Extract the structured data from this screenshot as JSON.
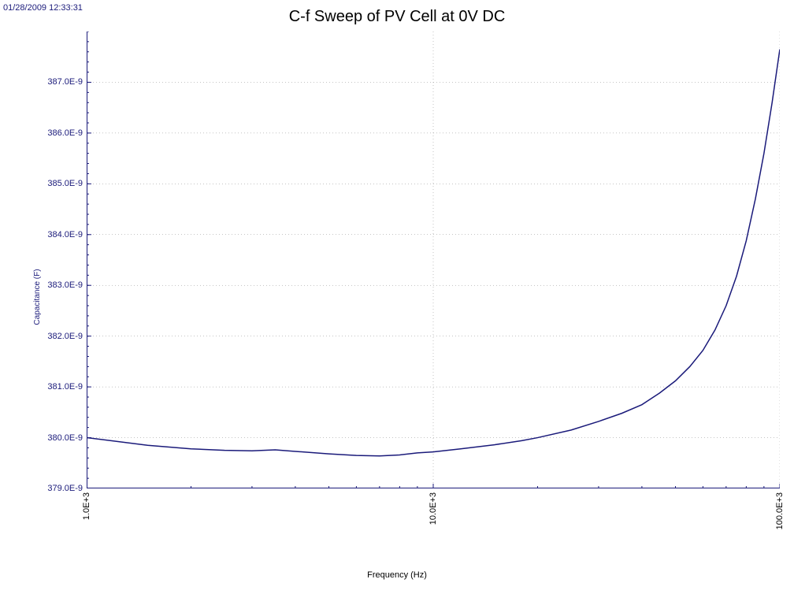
{
  "timestamp": "01/28/2009 12:33:31",
  "title": "C-f Sweep of PV Cell at 0V DC",
  "ylabel": "Capacitance (F)",
  "xlabel": "Frequency (Hz)",
  "chart": {
    "type": "line",
    "xscale": "log",
    "xlim": [
      1000,
      100000
    ],
    "ylim": [
      3.79e-07,
      3.88e-07
    ],
    "xticks": [
      1000,
      10000,
      100000
    ],
    "xtick_labels": [
      "1.0E+3",
      "10.0E+3",
      "100.0E+3"
    ],
    "yticks": [
      3.79e-07,
      3.8e-07,
      3.81e-07,
      3.82e-07,
      3.83e-07,
      3.84e-07,
      3.85e-07,
      3.86e-07,
      3.87e-07
    ],
    "ytick_labels": [
      "379.0E-9",
      "380.0E-9",
      "381.0E-9",
      "382.0E-9",
      "383.0E-9",
      "384.0E-9",
      "385.0E-9",
      "386.0E-9",
      "387.0E-9"
    ],
    "x_minor_ticks_per_decade": [
      2,
      3,
      4,
      5,
      6,
      7,
      8,
      9
    ],
    "y_minor_tick_step": 2e-10,
    "background_color": "#ffffff",
    "grid_color": "#888888",
    "axis_color": "#1a1a7a",
    "line_color": "#1a1a7a",
    "line_width": 1.5,
    "title_fontsize": 20,
    "label_fontsize": 11,
    "tick_fontsize": 11,
    "data": {
      "x": [
        1000,
        1500,
        2000,
        2500,
        3000,
        3500,
        4000,
        5000,
        6000,
        7000,
        8000,
        9000,
        10000,
        12000,
        15000,
        18000,
        20000,
        25000,
        30000,
        35000,
        40000,
        45000,
        50000,
        55000,
        60000,
        65000,
        70000,
        75000,
        80000,
        85000,
        90000,
        95000,
        100000
      ],
      "y": [
        3.8e-07,
        3.7985e-07,
        3.7978e-07,
        3.7975e-07,
        3.7974e-07,
        3.7976e-07,
        3.7973e-07,
        3.7968e-07,
        3.7965e-07,
        3.7964e-07,
        3.7966e-07,
        3.797e-07,
        3.7972e-07,
        3.7978e-07,
        3.7986e-07,
        3.7994e-07,
        3.8e-07,
        3.8015e-07,
        3.8032e-07,
        3.8048e-07,
        3.8065e-07,
        3.8088e-07,
        3.8112e-07,
        3.814e-07,
        3.8172e-07,
        3.8212e-07,
        3.826e-07,
        3.8318e-07,
        3.8388e-07,
        3.847e-07,
        3.856e-07,
        3.866e-07,
        3.8765e-07
      ]
    }
  }
}
